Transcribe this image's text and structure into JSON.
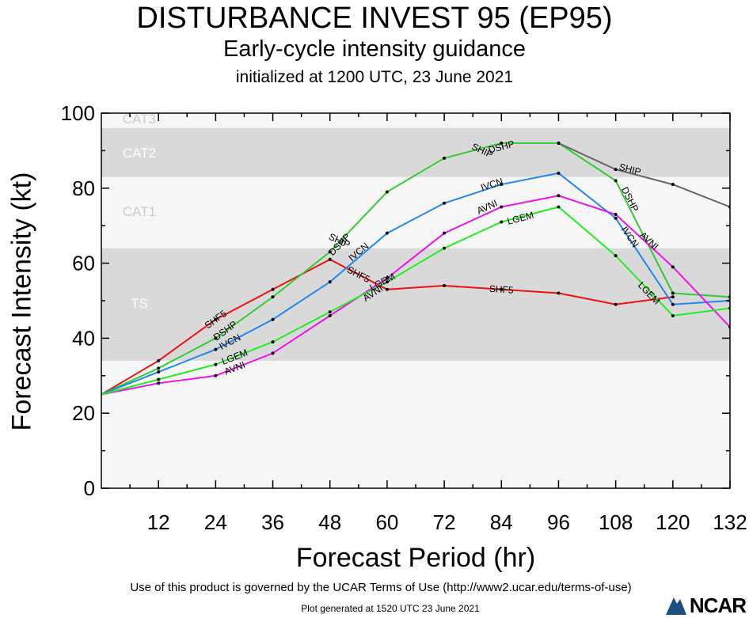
{
  "header": {
    "title": "DISTURBANCE INVEST 95 (EP95)",
    "subtitle": "Early-cycle intensity guidance",
    "initialized": "initialized at 1200 UTC, 23 June 2021"
  },
  "footer": {
    "terms": "Use of this product is governed by the UCAR Terms of Use (http://www2.ucar.edu/terms-of-use)",
    "generated": "Plot generated at 1520 UTC   23 June 2021",
    "logo_text": "NCAR"
  },
  "chart_data": {
    "type": "line",
    "xlabel": "Forecast Period (hr)",
    "ylabel": "Forecast Intensity (kt)",
    "xlim": [
      0,
      132
    ],
    "ylim": [
      0,
      100
    ],
    "xticks": [
      12,
      24,
      36,
      48,
      60,
      72,
      84,
      96,
      108,
      120,
      132
    ],
    "yticks": [
      0,
      20,
      40,
      60,
      80,
      100
    ],
    "grid": false,
    "bands": [
      {
        "label": "TS",
        "from": 34,
        "to": 64,
        "color": "#d9d9d9"
      },
      {
        "label": "CAT1",
        "from": 64,
        "to": 83,
        "color": "#f7f7f7"
      },
      {
        "label": "CAT2",
        "from": 83,
        "to": 96,
        "color": "#d9d9d9"
      },
      {
        "label": "CAT3",
        "from": 96,
        "to": 113,
        "color": "#f7f7f7"
      }
    ],
    "series": [
      {
        "name": "SHF5",
        "color": "#ee1111",
        "x": [
          0,
          12,
          24,
          36,
          48,
          60,
          72,
          84,
          96,
          108,
          120
        ],
        "y": [
          25,
          34,
          45,
          53,
          61,
          53,
          54,
          53,
          52,
          49,
          51
        ],
        "labels": [
          {
            "x": 24,
            "y": 45
          },
          {
            "x": 54,
            "y": 57
          },
          {
            "x": 84,
            "y": 53
          }
        ]
      },
      {
        "name": "DSHP",
        "color": "#33cc33",
        "x": [
          0,
          12,
          24,
          36,
          48,
          60,
          72,
          84,
          96,
          108,
          120,
          132
        ],
        "y": [
          25,
          32,
          40,
          51,
          63,
          79,
          88,
          92,
          92,
          82,
          52,
          51
        ],
        "labels": [
          {
            "x": 26,
            "y": 42
          },
          {
            "x": 50,
            "y": 65
          },
          {
            "x": 84,
            "y": 91
          },
          {
            "x": 111,
            "y": 77
          }
        ]
      },
      {
        "name": "SHIP",
        "color": "#666666",
        "x": [
          96,
          108,
          120,
          132
        ],
        "y": [
          92,
          85,
          81,
          75
        ],
        "labels": [
          {
            "x": 50,
            "y": 66
          },
          {
            "x": 80,
            "y": 90
          },
          {
            "x": 111,
            "y": 85
          }
        ]
      },
      {
        "name": "IVCN",
        "color": "#2288ee",
        "x": [
          0,
          12,
          24,
          36,
          48,
          60,
          72,
          84,
          96,
          108,
          120,
          132
        ],
        "y": [
          25,
          31,
          37,
          45,
          55,
          68,
          76,
          81,
          84,
          72,
          49,
          50
        ],
        "labels": [
          {
            "x": 27,
            "y": 39
          },
          {
            "x": 54,
            "y": 63
          },
          {
            "x": 82,
            "y": 81
          },
          {
            "x": 111,
            "y": 67
          }
        ]
      },
      {
        "name": "AVNI",
        "color": "#ee11ee",
        "x": [
          0,
          12,
          24,
          36,
          48,
          60,
          72,
          84,
          96,
          108,
          120,
          132
        ],
        "y": [
          25,
          28,
          30,
          36,
          46,
          56,
          68,
          75,
          78,
          73,
          59,
          43
        ],
        "labels": [
          {
            "x": 28,
            "y": 32
          },
          {
            "x": 57,
            "y": 52
          },
          {
            "x": 81,
            "y": 75
          },
          {
            "x": 115,
            "y": 66
          }
        ]
      },
      {
        "name": "LGEM",
        "color": "#22ee22",
        "x": [
          0,
          12,
          24,
          36,
          48,
          60,
          72,
          84,
          96,
          108,
          120,
          132
        ],
        "y": [
          25,
          29,
          33,
          39,
          47,
          55,
          64,
          71,
          75,
          62,
          46,
          48
        ],
        "labels": [
          {
            "x": 28,
            "y": 35
          },
          {
            "x": 59,
            "y": 55
          },
          {
            "x": 88,
            "y": 72
          },
          {
            "x": 115,
            "y": 52
          }
        ]
      }
    ]
  }
}
